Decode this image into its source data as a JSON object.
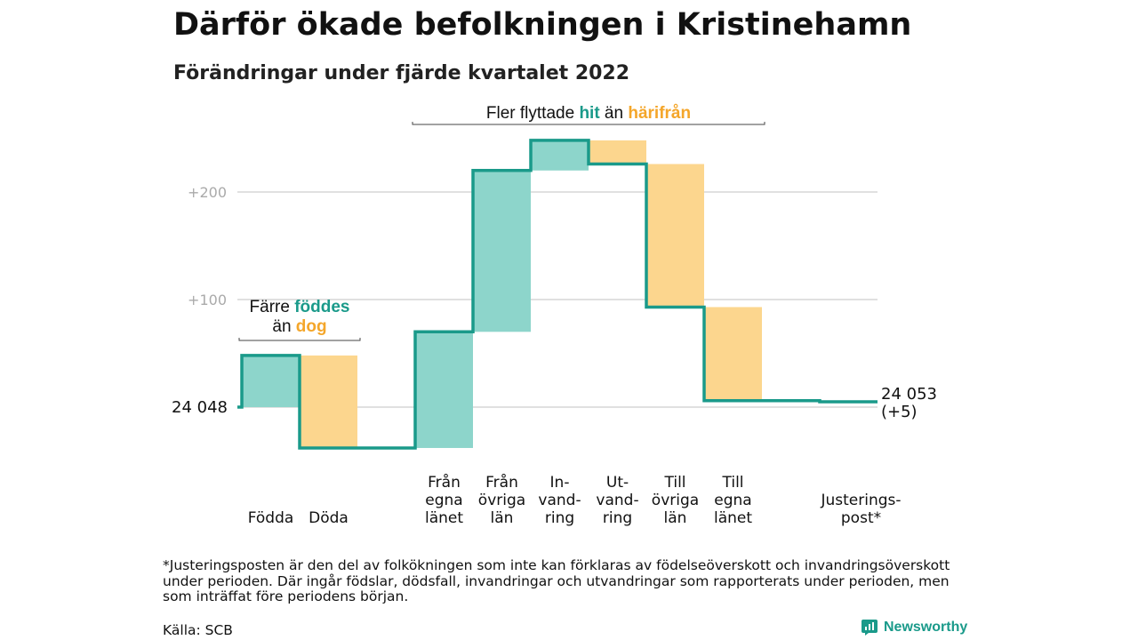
{
  "header": {
    "title": "Därför ökade befolkningen i Kristinehamn",
    "subtitle": "Förändringar under fjärde kvartalet 2022"
  },
  "chart_data": {
    "type": "waterfall",
    "baseline": 24048,
    "start_label": "24 048",
    "end_label_lines": [
      "24 053",
      "(+5)"
    ],
    "yticks": [
      {
        "offset": 100,
        "label": "+100"
      },
      {
        "offset": 200,
        "label": "+200"
      }
    ],
    "ylim": [
      -45,
      255
    ],
    "steps": [
      {
        "label_lines": [
          "Födda"
        ],
        "delta": 48,
        "kind": "in"
      },
      {
        "label_lines": [
          "Döda"
        ],
        "delta": -86,
        "kind": "out"
      },
      {
        "label_lines": [
          "Från",
          "egna",
          "länet"
        ],
        "delta": 108,
        "kind": "in"
      },
      {
        "label_lines": [
          "Från",
          "övriga",
          "län"
        ],
        "delta": 150,
        "kind": "in"
      },
      {
        "label_lines": [
          "In-",
          "vand-",
          "ring"
        ],
        "delta": 28,
        "kind": "in"
      },
      {
        "label_lines": [
          "Ut-",
          "vand-",
          "ring"
        ],
        "delta": -22,
        "kind": "out"
      },
      {
        "label_lines": [
          "Till",
          "övriga",
          "län"
        ],
        "delta": -133,
        "kind": "out"
      },
      {
        "label_lines": [
          "Till",
          "egna",
          "länet"
        ],
        "delta": -87,
        "kind": "out"
      },
      {
        "label_lines": [
          "Justerings-",
          "post*"
        ],
        "delta": -1,
        "kind": "adjust"
      }
    ],
    "annotations": [
      {
        "lines": [
          [
            {
              "text": "Färre ",
              "kind": "plain"
            },
            {
              "text": "föddes",
              "kind": "in"
            }
          ],
          [
            {
              "text": "än ",
              "kind": "plain"
            },
            {
              "text": "dog",
              "kind": "out"
            }
          ]
        ],
        "span": [
          0,
          1
        ]
      },
      {
        "lines": [
          [
            {
              "text": "Fler flyttade ",
              "kind": "plain"
            },
            {
              "text": "hit",
              "kind": "in"
            },
            {
              "text": " än ",
              "kind": "plain"
            },
            {
              "text": "härifrån",
              "kind": "out"
            }
          ]
        ],
        "span": [
          2,
          7
        ]
      }
    ],
    "colors": {
      "in": "#8dd5cb",
      "out": "#fcd68e",
      "line": "#1a9a8a",
      "in_text": "#1a9a8a",
      "out_text": "#f4a62a",
      "grid": "#d6d6d6",
      "tick": "#aaaaaa"
    }
  },
  "footnote": "*Justeringsposten är den del av folkökningen som inte kan förklaras av födelseöverskott och invandringsöverskott under perioden. Där ingår födslar, dödsfall, invandringar och utvandringar som rapporterats under perioden, men som inträffat före periodens början.",
  "source": "Källa: SCB",
  "brand": {
    "name": "Newsworthy"
  }
}
